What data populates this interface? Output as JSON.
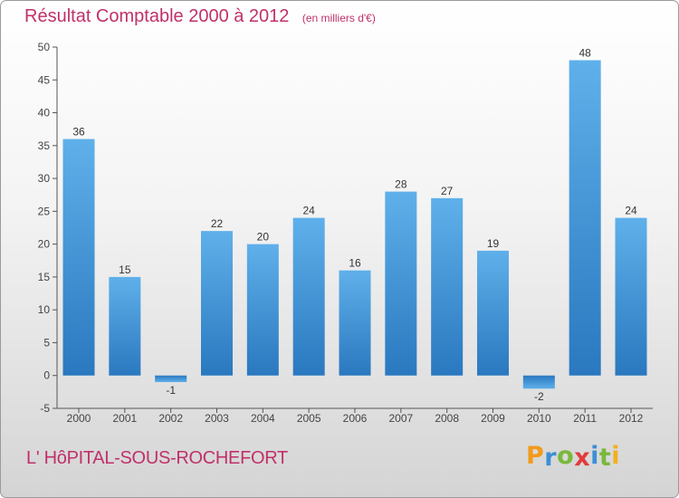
{
  "chart_data": {
    "type": "bar",
    "title": "Résultat Comptable 2000 à 2012",
    "subtitle": "(en milliers d'€)",
    "categories": [
      "2000",
      "2001",
      "2002",
      "2003",
      "2004",
      "2005",
      "2006",
      "2007",
      "2008",
      "2009",
      "2010",
      "2011",
      "2012"
    ],
    "values": [
      36,
      15,
      -1,
      22,
      20,
      24,
      16,
      28,
      27,
      19,
      -2,
      48,
      24
    ],
    "data_labels": [
      "36",
      "15",
      "-1",
      "22",
      "20",
      "24",
      "16",
      "28",
      "27",
      "19",
      "-2",
      "48",
      "24"
    ],
    "yticks": [
      -5,
      0,
      5,
      10,
      15,
      20,
      25,
      30,
      35,
      40,
      45,
      50
    ],
    "ylim": [
      -5,
      50
    ],
    "xlabel": "",
    "ylabel": "",
    "grid": false,
    "legend": "none",
    "bar_color": "#3a8fd6",
    "bar_color_light": "#5fb0ea",
    "bar_color_dark": "#2a78bf"
  },
  "footer": {
    "location": "L' HôPITAL-SOUS-ROCHEFORT",
    "brand": "Proxiti"
  },
  "colors": {
    "title": "#c0306a",
    "axis": "#555555",
    "brand_letters": [
      "#f29a1c",
      "#3a8fd6",
      "#7ab83a",
      "#e23b3b",
      "#3a8fd6",
      "#7ab83a",
      "#f2b01c"
    ]
  }
}
